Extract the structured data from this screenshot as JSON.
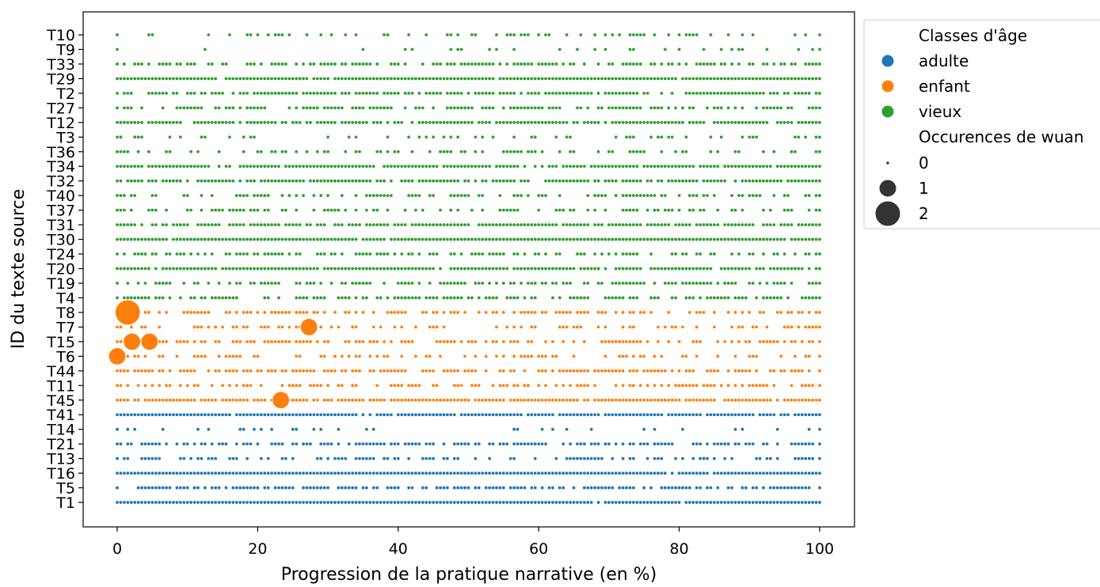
{
  "chart_data": {
    "type": "scatter",
    "title": "",
    "xlabel": "Progression de la pratique narrative (en %)",
    "ylabel": "ID du texte source",
    "xlim": [
      -5,
      105
    ],
    "x_ticks": [
      0,
      20,
      40,
      60,
      80,
      100
    ],
    "grid": false,
    "categories": [
      "T10",
      "T9",
      "T33",
      "T29",
      "T2",
      "T27",
      "T12",
      "T3",
      "T36",
      "T34",
      "T32",
      "T40",
      "T37",
      "T31",
      "T30",
      "T24",
      "T20",
      "T19",
      "T4",
      "T8",
      "T7",
      "T15",
      "T6",
      "T44",
      "T11",
      "T45",
      "T41",
      "T14",
      "T21",
      "T13",
      "T16",
      "T5",
      "T1"
    ],
    "category_group": {
      "T10": "vieux",
      "T9": "vieux",
      "T33": "vieux",
      "T29": "vieux",
      "T2": "vieux",
      "T27": "vieux",
      "T12": "vieux",
      "T3": "vieux",
      "T36": "vieux",
      "T34": "vieux",
      "T32": "vieux",
      "T40": "vieux",
      "T37": "vieux",
      "T31": "vieux",
      "T30": "vieux",
      "T24": "vieux",
      "T20": "vieux",
      "T19": "vieux",
      "T4": "vieux",
      "T8": "enfant",
      "T7": "enfant",
      "T15": "enfant",
      "T6": "enfant",
      "T44": "enfant",
      "T11": "enfant",
      "T45": "enfant",
      "T41": "adulte",
      "T14": "adulte",
      "T21": "adulte",
      "T13": "adulte",
      "T16": "adulte",
      "T5": "adulte",
      "T1": "adulte"
    },
    "row_density": {
      "T10": 0.28,
      "T9": 0.13,
      "T33": 0.62,
      "T29": 0.92,
      "T2": 0.78,
      "T27": 0.58,
      "T12": 0.86,
      "T3": 0.3,
      "T36": 0.38,
      "T34": 0.88,
      "T32": 0.78,
      "T40": 0.5,
      "T37": 0.46,
      "T31": 0.85,
      "T30": 0.97,
      "T24": 0.5,
      "T20": 0.9,
      "T19": 0.5,
      "T4": 0.62,
      "T8": 0.52,
      "T7": 0.38,
      "T15": 0.6,
      "T6": 0.34,
      "T44": 0.66,
      "T11": 0.52,
      "T45": 0.9,
      "T41": 0.92,
      "T14": 0.12,
      "T21": 0.66,
      "T13": 0.48,
      "T16": 0.98,
      "T5": 0.7,
      "T1": 0.96
    },
    "highlighted_points": [
      {
        "category": "T8",
        "x": 1.5,
        "occurrences": 2
      },
      {
        "category": "T7",
        "x": 27.3,
        "occurrences": 1
      },
      {
        "category": "T15",
        "x": 2.1,
        "occurrences": 1
      },
      {
        "category": "T15",
        "x": 4.6,
        "occurrences": 1
      },
      {
        "category": "T6",
        "x": 0.0,
        "occurrences": 1
      },
      {
        "category": "T45",
        "x": 23.3,
        "occurrences": 1
      }
    ],
    "hue": {
      "title": "Classes d'âge",
      "entries": [
        {
          "label": "adulte",
          "color": "#1f77b4"
        },
        {
          "label": "enfant",
          "color": "#ff7f0e"
        },
        {
          "label": "vieux",
          "color": "#2ca02c"
        }
      ]
    },
    "size": {
      "title": "Occurences de wuan",
      "entries": [
        {
          "label": "0",
          "value": 0
        },
        {
          "label": "1",
          "value": 1
        },
        {
          "label": "2",
          "value": 2
        }
      ]
    },
    "legend_position": "outside-right"
  }
}
